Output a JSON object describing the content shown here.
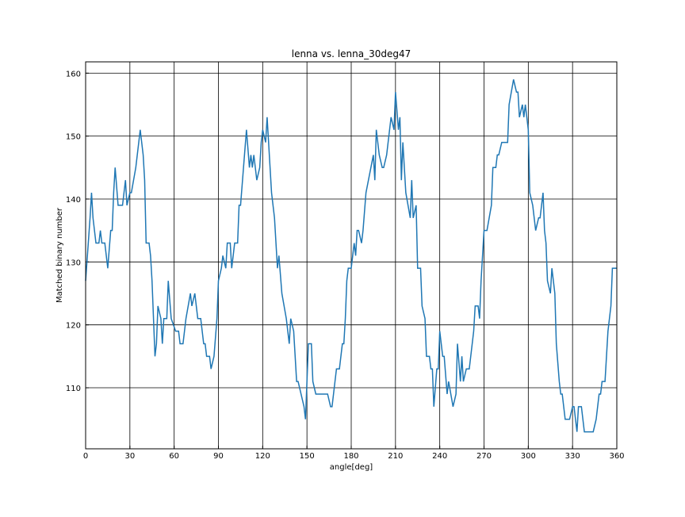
{
  "chart_data": {
    "type": "line",
    "title": "lenna vs. lenna_30deg47",
    "x_label": "angle[deg]",
    "y_label": "Matched binary number",
    "x": [
      0,
      3,
      4,
      5,
      7,
      9,
      10,
      11,
      13,
      15,
      17,
      18,
      19,
      20,
      22,
      25,
      27,
      28,
      30,
      31,
      34,
      35,
      37,
      39,
      40,
      41,
      43,
      44,
      45,
      47,
      48,
      49,
      51,
      52,
      53,
      55,
      56,
      58,
      61,
      63,
      64,
      66,
      68,
      71,
      72,
      74,
      75,
      76,
      78,
      80,
      81,
      82,
      84,
      85,
      87,
      89,
      90,
      92,
      93,
      95,
      96,
      98,
      99,
      101,
      103,
      104,
      105,
      107,
      109,
      111,
      112,
      113,
      114,
      116,
      118,
      119,
      120,
      122,
      123,
      125,
      126,
      128,
      130,
      131,
      133,
      136,
      138,
      139,
      141,
      143,
      144,
      146,
      148,
      149,
      151,
      153,
      154,
      156,
      164,
      166,
      167,
      169,
      170,
      172,
      174,
      175,
      176,
      177,
      178,
      180,
      181,
      182,
      183,
      184,
      185,
      187,
      188,
      190,
      195,
      196,
      197,
      199,
      201,
      202,
      204,
      205,
      207,
      209,
      210,
      212,
      213,
      214,
      215,
      217,
      220,
      221,
      222,
      224,
      225,
      227,
      228,
      230,
      231,
      233,
      234,
      235,
      236,
      238,
      239,
      240,
      242,
      243,
      245,
      246,
      249,
      251,
      252,
      254,
      255,
      256,
      258,
      260,
      263,
      264,
      266,
      267,
      268,
      270,
      272,
      275,
      276,
      278,
      279,
      280,
      282,
      286,
      287,
      290,
      292,
      293,
      294,
      296,
      297,
      298,
      300,
      301,
      303,
      305,
      307,
      308,
      310,
      311,
      312,
      313,
      315,
      316,
      318,
      319,
      321,
      322,
      323,
      325,
      328,
      330,
      331,
      333,
      334,
      336,
      338,
      344,
      346,
      348,
      349,
      350,
      352,
      354,
      356,
      357,
      360
    ],
    "series": [
      {
        "color": "#1f77b4",
        "values": [
          127,
          137,
          141,
          137,
          133,
          133,
          135,
          133,
          133,
          129,
          135,
          135,
          141,
          145,
          139,
          139,
          143,
          139,
          141,
          141,
          145,
          147,
          151,
          147,
          143,
          133,
          133,
          131,
          127,
          115,
          117,
          123,
          121,
          117,
          121,
          121,
          127,
          121,
          119,
          119,
          117,
          117,
          121,
          125,
          123,
          125,
          123,
          121,
          121,
          117,
          117,
          115,
          115,
          113,
          115,
          121,
          127,
          129,
          131,
          129,
          133,
          133,
          129,
          133,
          133,
          139,
          139,
          145,
          151,
          145,
          147,
          145,
          147,
          143,
          145,
          149,
          151,
          149,
          153,
          145,
          141,
          137,
          129,
          131,
          125,
          121,
          117,
          121,
          119,
          111,
          111,
          109,
          107,
          105,
          117,
          117,
          111,
          109,
          109,
          107,
          107,
          111,
          113,
          113,
          117,
          117,
          121,
          127,
          129,
          129,
          131,
          133,
          131,
          135,
          135,
          133,
          135,
          141,
          147,
          143,
          151,
          147,
          145,
          145,
          147,
          149,
          153,
          151,
          157,
          151,
          153,
          143,
          149,
          141,
          137,
          143,
          137,
          139,
          129,
          129,
          123,
          121,
          115,
          115,
          113,
          113,
          107,
          113,
          113,
          119,
          115,
          115,
          109,
          111,
          107,
          109,
          117,
          111,
          115,
          111,
          113,
          113,
          119,
          123,
          123,
          121,
          127,
          135,
          135,
          139,
          145,
          145,
          147,
          147,
          149,
          149,
          155,
          159,
          157,
          157,
          153,
          155,
          153,
          155,
          151,
          141,
          139,
          135,
          137,
          137,
          141,
          135,
          133,
          127,
          125,
          129,
          125,
          117,
          111,
          109,
          109,
          105,
          105,
          107,
          107,
          103,
          107,
          107,
          103,
          103,
          105,
          109,
          109,
          111,
          111,
          119,
          123,
          129,
          129
        ]
      }
    ],
    "xlim": [
      0,
      360
    ],
    "xticks": [
      0,
      30,
      60,
      90,
      120,
      150,
      180,
      210,
      240,
      270,
      300,
      330,
      360
    ],
    "ylim": [
      100.3,
      161.8
    ],
    "yticks": [
      110,
      120,
      130,
      140,
      150,
      160
    ],
    "grid": true
  }
}
